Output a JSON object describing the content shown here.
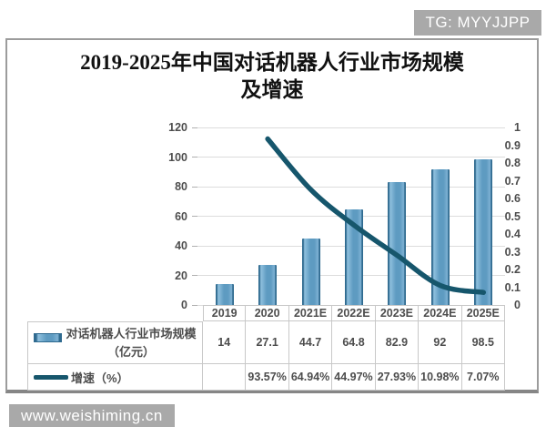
{
  "page": {
    "badge": "TG: MYYJJPP",
    "watermark": "www.weishiming.cn"
  },
  "chart_data": {
    "type": "combo-bar-line",
    "title": "2019-2025年中国对话机器人行业市场规模及增速",
    "categories": [
      "2019",
      "2020",
      "2021E",
      "2022E",
      "2023E",
      "2024E",
      "2025E"
    ],
    "series": [
      {
        "name": "对话机器人行业市场规模（亿元）",
        "type": "bar",
        "axis": "left",
        "values": [
          14,
          27.1,
          44.7,
          64.8,
          82.9,
          92,
          98.5
        ],
        "labels": [
          "14",
          "27.1",
          "44.7",
          "64.8",
          "82.9",
          "92",
          "98.5"
        ]
      },
      {
        "name": "增速（%）",
        "type": "line",
        "axis": "right",
        "values": [
          null,
          0.9357,
          0.6494,
          0.4497,
          0.2793,
          0.1098,
          0.0707
        ],
        "labels": [
          "",
          "93.57%",
          "64.94%",
          "44.97%",
          "27.93%",
          "10.98%",
          "7.07%"
        ]
      }
    ],
    "left_axis": {
      "min": 0,
      "max": 120,
      "step": 20,
      "ticks": [
        "120",
        "100",
        "80",
        "60",
        "40",
        "20",
        "0"
      ]
    },
    "right_axis": {
      "min": 0,
      "max": 1,
      "step": 0.1,
      "ticks": [
        "1",
        "0.9",
        "0.8",
        "0.7",
        "0.6",
        "0.5",
        "0.4",
        "0.3",
        "0.2",
        "0.1",
        "0"
      ]
    },
    "grid": true,
    "legend_position": "data-table-bottom",
    "colors": {
      "bar_mid": "#5e9bc1",
      "bar_light": "#8fc0de",
      "bar_light2": "#7fb2d4",
      "bar_edge": "#2f6a8f",
      "line": "#16566c",
      "grid": "#dcdcdc",
      "tick": "#b0b0b0",
      "text": "#4d4d4d"
    }
  }
}
